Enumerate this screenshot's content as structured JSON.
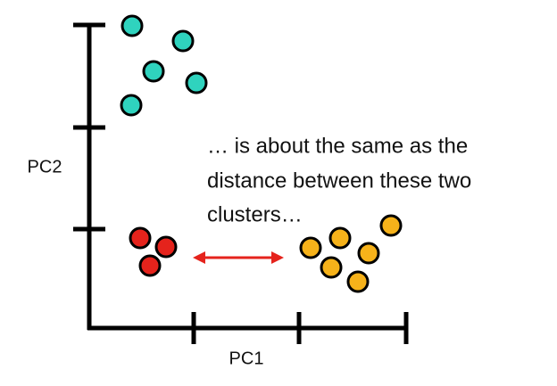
{
  "axes": {
    "x_label": "PC1",
    "y_label": "PC2"
  },
  "annotation": {
    "lines": [
      "… is about the same as the",
      "distance between these two",
      "clusters…"
    ]
  }
}
